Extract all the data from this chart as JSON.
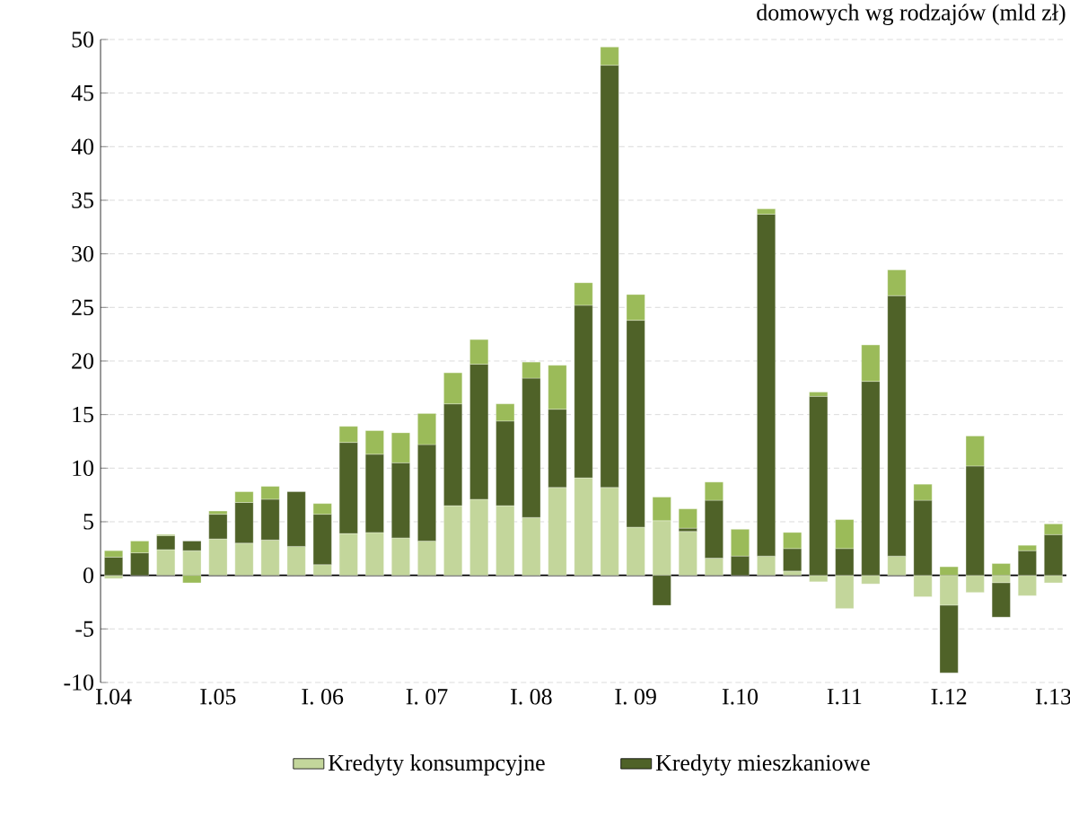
{
  "chart_data": {
    "type": "bar",
    "stacked": true,
    "title": "domowych wg rodzajów (mld zł)",
    "categories": [
      "I.04",
      null,
      null,
      null,
      "I.05",
      null,
      null,
      null,
      "I. 06",
      null,
      null,
      null,
      "I. 07",
      null,
      null,
      null,
      "I. 08",
      null,
      null,
      null,
      "I. 09",
      null,
      null,
      null,
      "I.10",
      null,
      null,
      null,
      "I.11",
      null,
      null,
      null,
      "I.12",
      null,
      null,
      null,
      "I.13"
    ],
    "series": [
      {
        "name": "Kredyty konsumpcyjne",
        "color": "#c3d69b",
        "values": [
          -0.3,
          0,
          2.4,
          2.3,
          3.4,
          3.0,
          3.3,
          2.7,
          1.0,
          3.9,
          4.0,
          3.5,
          3.2,
          6.5,
          7.1,
          6.5,
          5.4,
          8.2,
          9.1,
          8.2,
          4.5,
          5.1,
          4.1,
          1.6,
          0,
          1.8,
          0.4,
          -0.6,
          -3.1,
          -0.8,
          1.8,
          -2.0,
          -2.8,
          -1.6,
          -0.7,
          -1.9,
          -0.7
        ]
      },
      {
        "name": "Kredyty mieszkaniowe",
        "color": "#4f6228",
        "values": [
          1.7,
          2.1,
          1.3,
          0.9,
          2.3,
          3.8,
          3.8,
          5.1,
          4.7,
          8.5,
          7.3,
          7.0,
          9.0,
          9.5,
          12.6,
          7.9,
          13.0,
          7.3,
          16.1,
          39.4,
          19.3,
          -2.8,
          0.3,
          5.4,
          1.8,
          31.9,
          2.1,
          16.7,
          2.5,
          18.1,
          24.3,
          7.0,
          -6.3,
          10.2,
          -3.2,
          2.3,
          3.8
        ]
      },
      {
        "color": "#9bbb59",
        "values": [
          0.6,
          1.1,
          0.1,
          -0.7,
          0.3,
          1.0,
          1.2,
          0,
          1.0,
          1.5,
          2.2,
          2.8,
          2.9,
          2.9,
          2.3,
          1.6,
          1.5,
          4.1,
          2.1,
          1.7,
          2.4,
          2.2,
          1.8,
          1.7,
          2.5,
          0.5,
          1.5,
          0.4,
          2.7,
          3.4,
          2.4,
          1.5,
          0.8,
          2.8,
          1.1,
          0.5,
          1.0
        ]
      }
    ],
    "ylim": [
      -10,
      50
    ],
    "yticks": [
      -10,
      -5,
      0,
      5,
      10,
      15,
      20,
      25,
      30,
      35,
      40,
      45,
      50
    ],
    "grid": "y",
    "legend": "bottom"
  }
}
